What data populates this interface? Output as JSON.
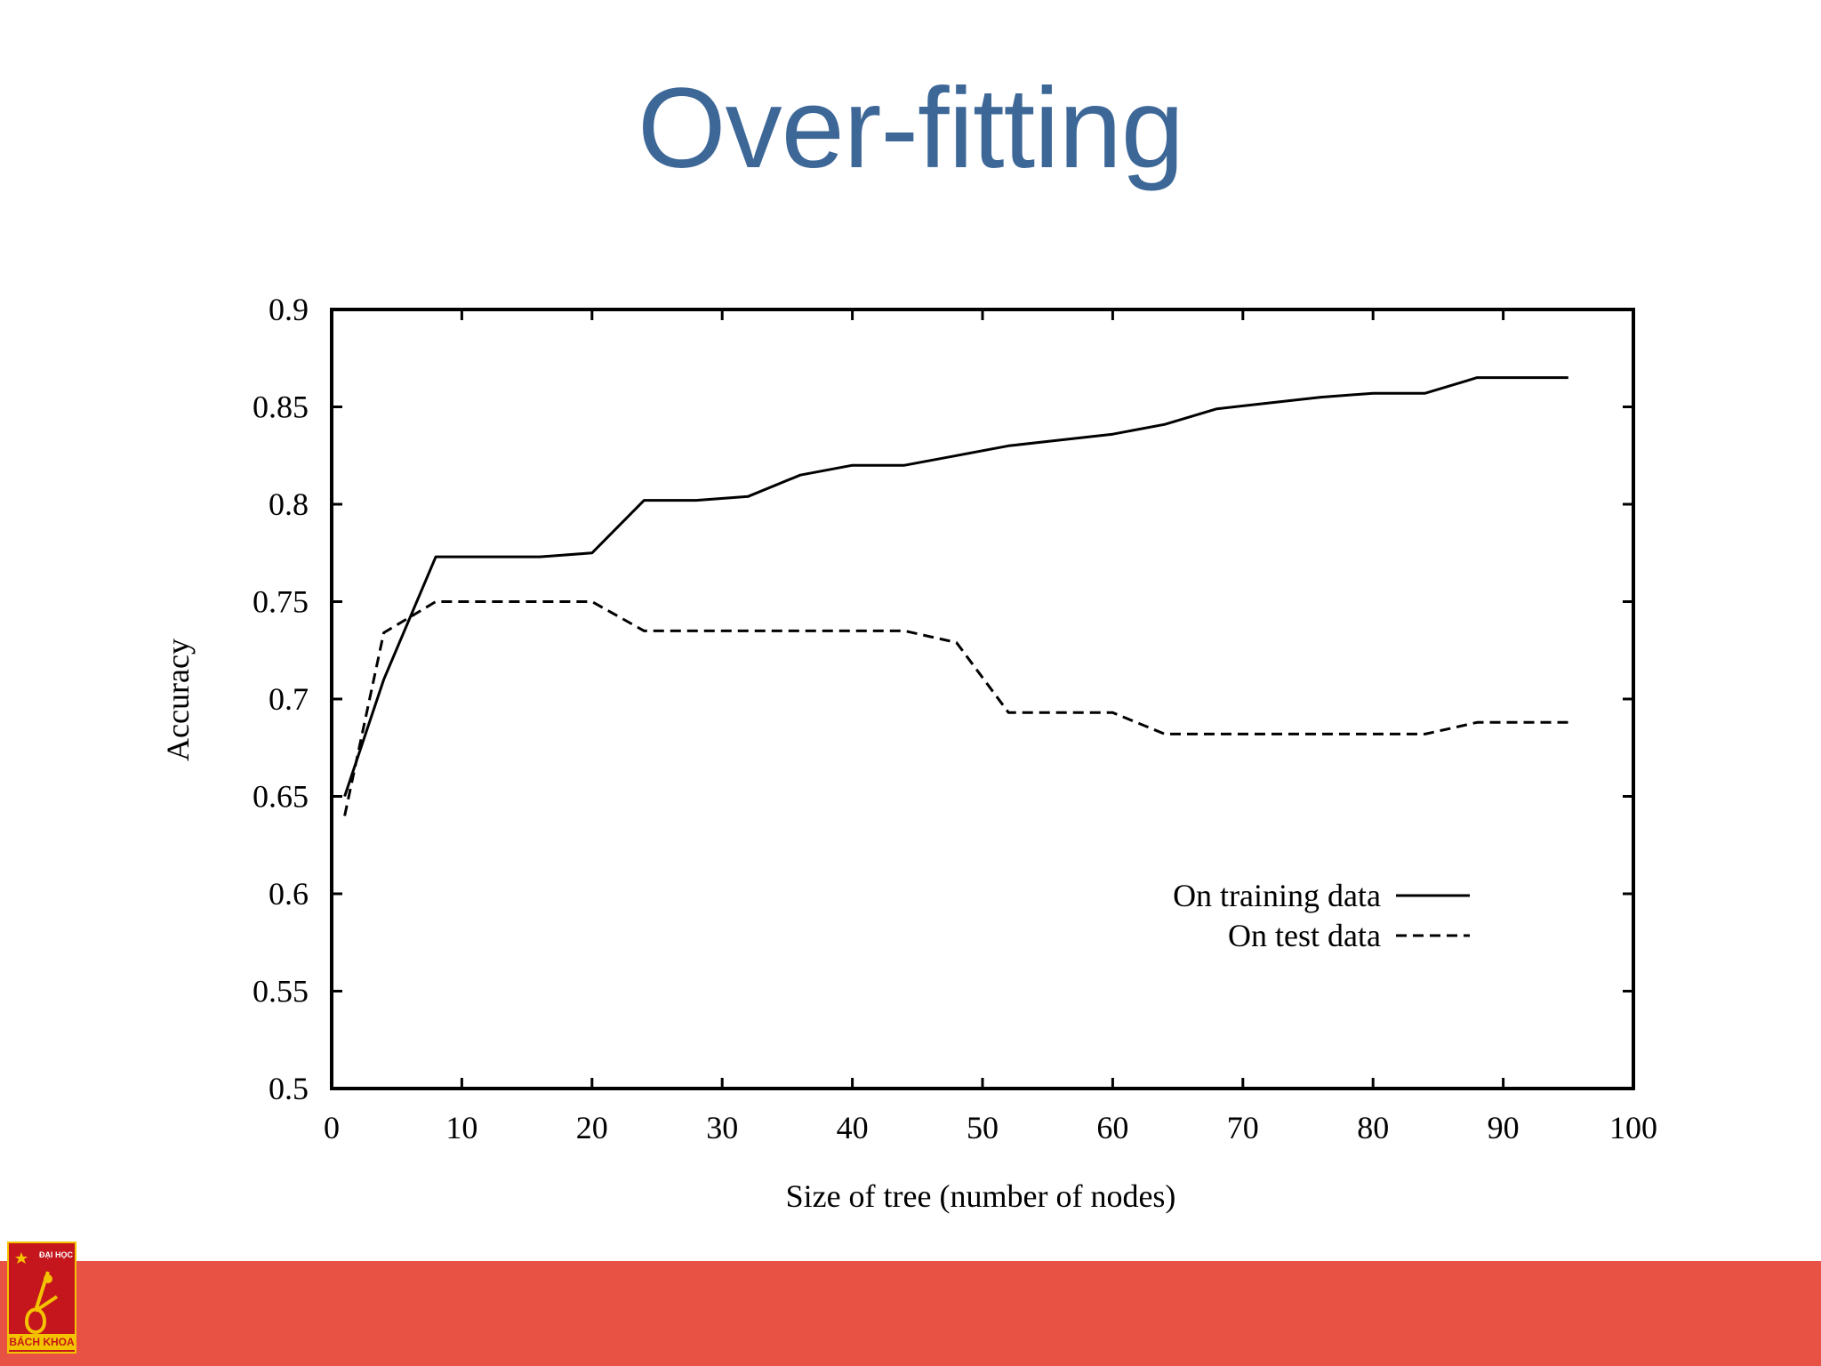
{
  "slide": {
    "title": "Over-fitting"
  },
  "logo": {
    "top_text": "ĐẠI HỌC",
    "bottom_text": "BÁCH KHOA"
  },
  "colors": {
    "title": "#3d6797",
    "footer": "#e85245",
    "logo_red": "#c4161c",
    "logo_yellow": "#f4c300"
  },
  "chart_data": {
    "type": "line",
    "title": "",
    "xlabel": "Size of tree (number of nodes)",
    "ylabel": "Accuracy",
    "xlim": [
      0,
      100
    ],
    "ylim": [
      0.5,
      0.9
    ],
    "xticks": [
      0,
      10,
      20,
      30,
      40,
      50,
      60,
      70,
      80,
      90,
      100
    ],
    "xtick_labels": [
      "0",
      "10",
      "20",
      "30",
      "40",
      "50",
      "60",
      "70",
      "80",
      "90",
      "100"
    ],
    "yticks": [
      0.5,
      0.55,
      0.6,
      0.65,
      0.7,
      0.75,
      0.8,
      0.85,
      0.9
    ],
    "ytick_labels": [
      "0.5",
      "0.55",
      "0.6",
      "0.65",
      "0.7",
      "0.75",
      "0.8",
      "0.85",
      "0.9"
    ],
    "grid": false,
    "legend_position": "bottom-right",
    "series": [
      {
        "name": "On training data",
        "style": "solid",
        "x": [
          1,
          4,
          8,
          12,
          16,
          20,
          24,
          28,
          32,
          36,
          40,
          44,
          48,
          52,
          56,
          60,
          64,
          68,
          72,
          76,
          80,
          84,
          88,
          92,
          95
        ],
        "y": [
          0.65,
          0.71,
          0.773,
          0.773,
          0.773,
          0.775,
          0.802,
          0.802,
          0.804,
          0.815,
          0.82,
          0.82,
          0.825,
          0.83,
          0.833,
          0.836,
          0.841,
          0.849,
          0.852,
          0.855,
          0.857,
          0.857,
          0.865,
          0.865,
          0.865
        ]
      },
      {
        "name": "On test data",
        "style": "dashed",
        "x": [
          1,
          4,
          8,
          12,
          16,
          20,
          24,
          28,
          32,
          36,
          40,
          44,
          48,
          52,
          56,
          60,
          64,
          68,
          72,
          76,
          80,
          84,
          88,
          92,
          95
        ],
        "y": [
          0.64,
          0.734,
          0.75,
          0.75,
          0.75,
          0.75,
          0.735,
          0.735,
          0.735,
          0.735,
          0.735,
          0.735,
          0.729,
          0.693,
          0.693,
          0.693,
          0.682,
          0.682,
          0.682,
          0.682,
          0.682,
          0.682,
          0.688,
          0.688,
          0.688
        ]
      }
    ]
  }
}
